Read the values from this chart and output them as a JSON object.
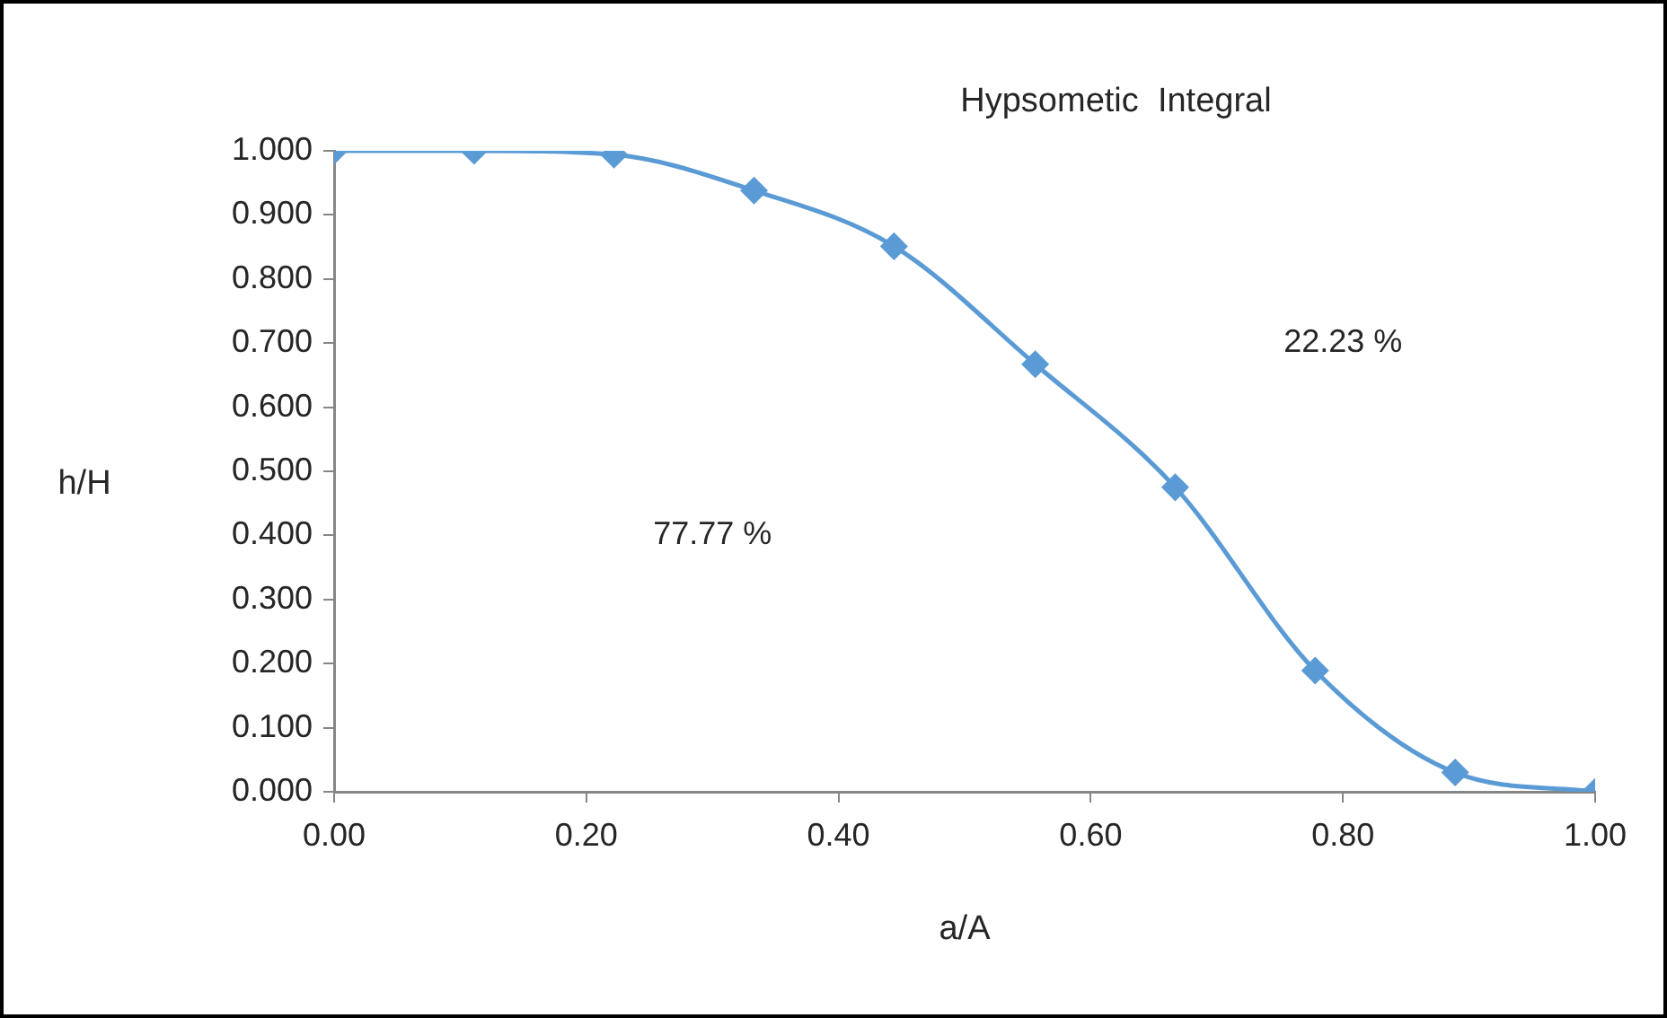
{
  "chart_data": {
    "type": "line",
    "title": "Hypsometic  Integral",
    "xlabel": "a/A",
    "ylabel": "h/H",
    "x": [
      0,
      0.111,
      0.222,
      0.333,
      0.444,
      0.556,
      0.667,
      0.778,
      0.889,
      1
    ],
    "series": [
      {
        "color": "#5b9bd5",
        "values": [
          1.0,
          1.0,
          0.994,
          0.938,
          0.851,
          0.667,
          0.475,
          0.189,
          0.03,
          0.0
        ]
      }
    ],
    "xlim": [
      0,
      1
    ],
    "xticks": [
      {
        "value": 0,
        "label": "0.00"
      },
      {
        "value": 0.2,
        "label": "0.20"
      },
      {
        "value": 0.4,
        "label": "0.40"
      },
      {
        "value": 0.6,
        "label": "0.60"
      },
      {
        "value": 0.8,
        "label": "0.80"
      },
      {
        "value": 1,
        "label": "1.00"
      }
    ],
    "ylim": [
      0,
      1
    ],
    "yticks": [
      {
        "value": 0,
        "label": "0.000"
      },
      {
        "value": 0.1,
        "label": "0.100"
      },
      {
        "value": 0.2,
        "label": "0.200"
      },
      {
        "value": 0.3,
        "label": "0.300"
      },
      {
        "value": 0.4,
        "label": "0.400"
      },
      {
        "value": 0.5,
        "label": "0.500"
      },
      {
        "value": 0.6,
        "label": "0.600"
      },
      {
        "value": 0.7,
        "label": "0.700"
      },
      {
        "value": 0.8,
        "label": "0.800"
      },
      {
        "value": 0.9,
        "label": "0.900"
      },
      {
        "value": 1,
        "label": "1.000"
      }
    ],
    "annotations": [
      "77.77 %",
      "22.23 %"
    ],
    "grid": false,
    "legend": false,
    "marker": "diamond",
    "line_style": "solid"
  }
}
